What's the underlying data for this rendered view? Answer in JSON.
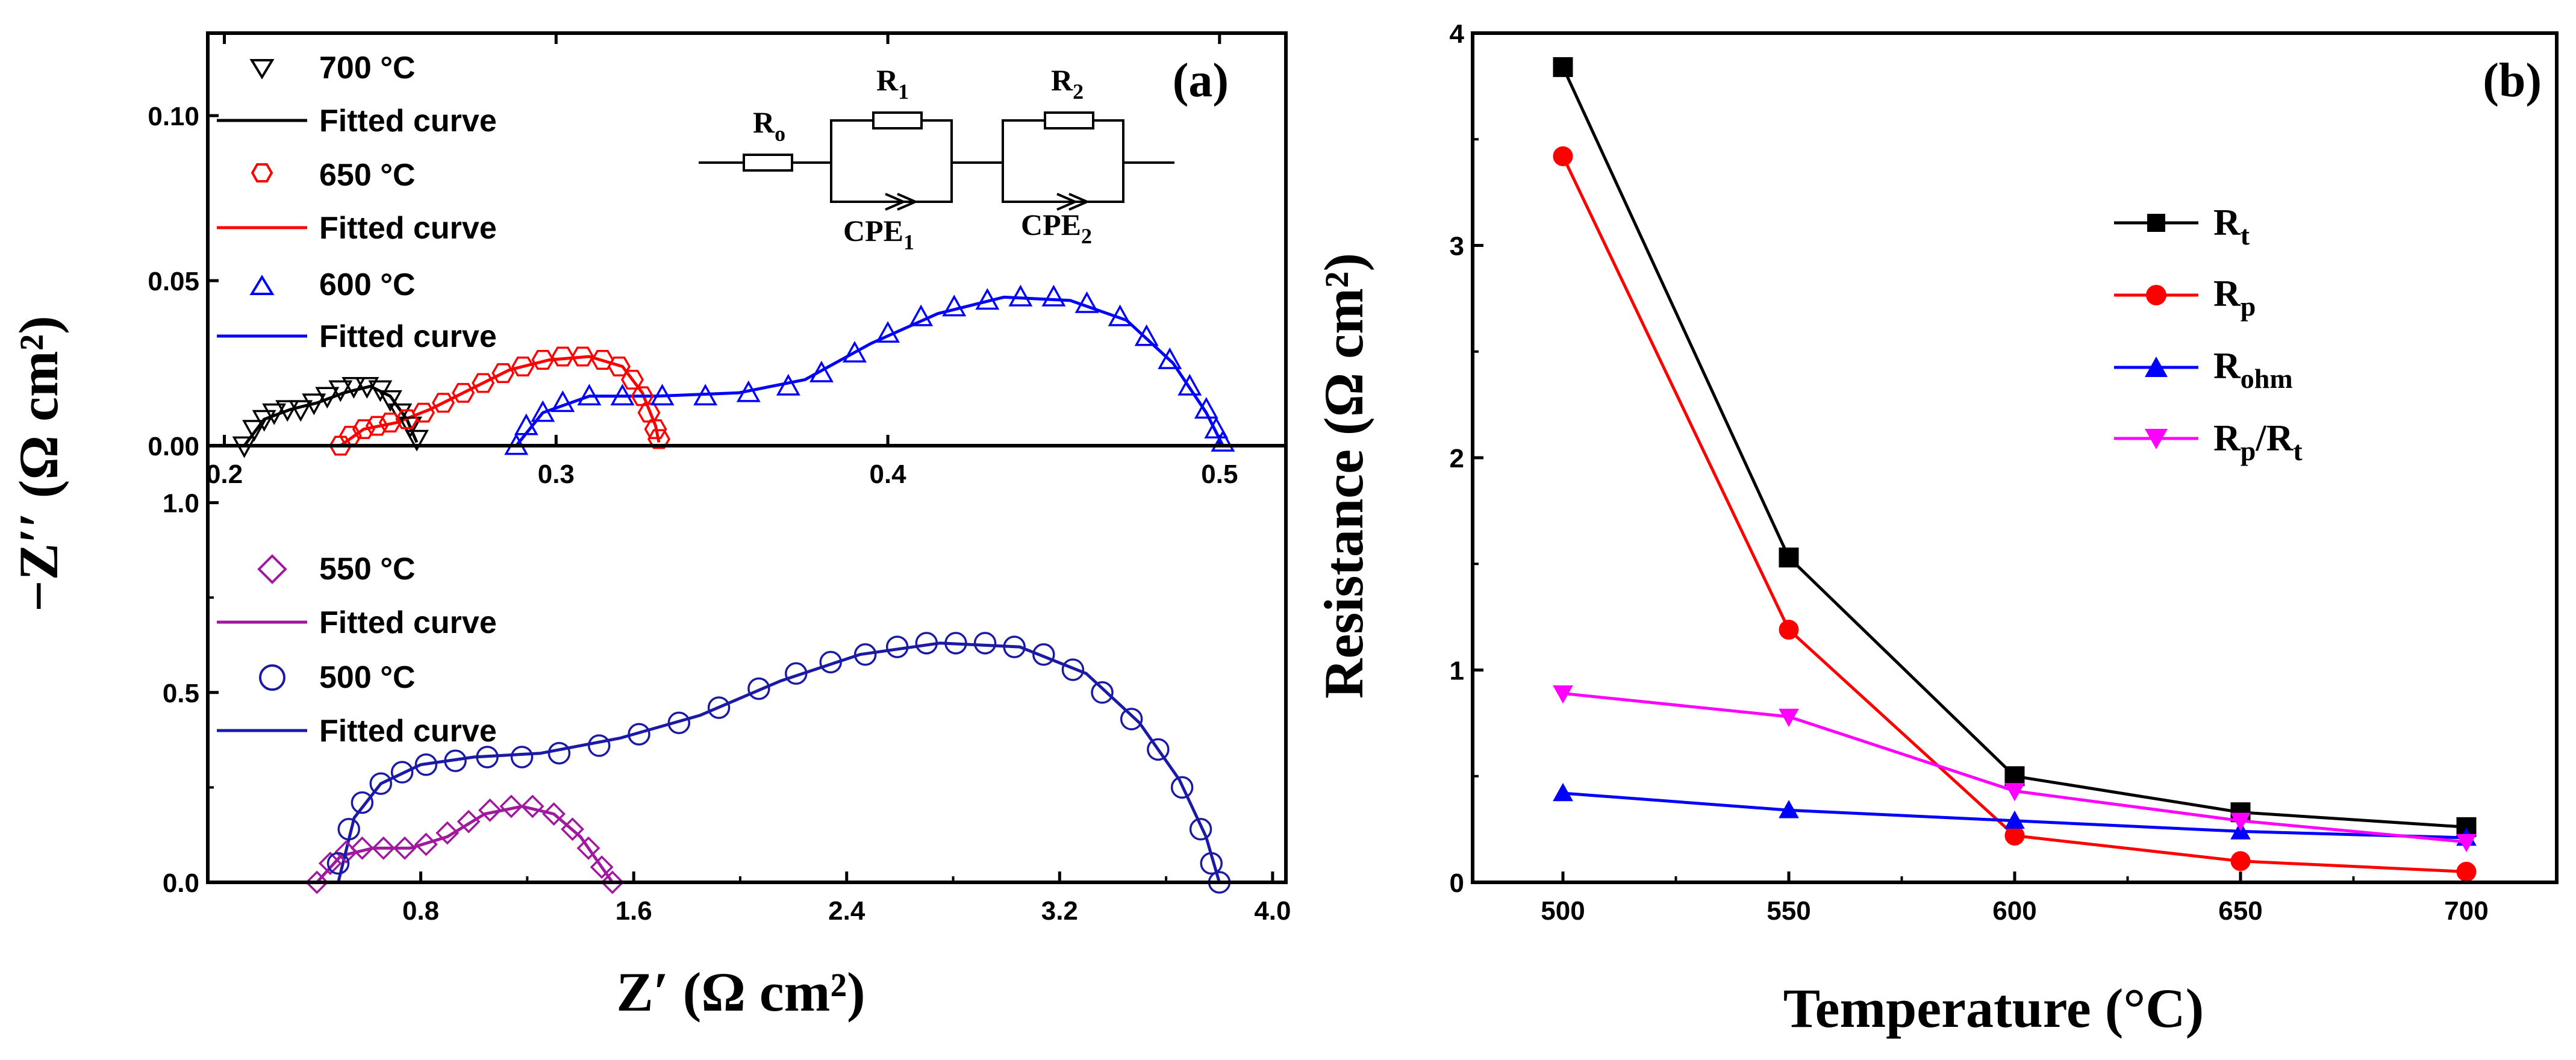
{
  "chart_data": [
    {
      "panel": "(a) top",
      "type": "scatter",
      "panel_label": "(a)",
      "xlim": [
        0.195,
        0.52
      ],
      "ylim": [
        0,
        0.125
      ],
      "xticks": [
        "0.2",
        "0.3",
        "0.4",
        "0.5"
      ],
      "xtick_values": [
        0.2,
        0.3,
        0.4,
        0.5
      ],
      "yticks": [
        "0.00",
        "0.05",
        "0.10"
      ],
      "ytick_values": [
        0,
        0.05,
        0.1
      ],
      "ylabel": "−Z′′ (Ω cm²)",
      "series": [
        {
          "name": "700 °C",
          "marker": "triangle-down",
          "color": "#000000",
          "x": [
            0.206,
            0.209,
            0.212,
            0.215,
            0.219,
            0.223,
            0.227,
            0.231,
            0.235,
            0.239,
            0.243,
            0.247,
            0.25,
            0.253,
            0.256,
            0.258
          ],
          "y": [
            0.0,
            0.005,
            0.008,
            0.01,
            0.011,
            0.011,
            0.013,
            0.015,
            0.017,
            0.018,
            0.018,
            0.017,
            0.014,
            0.01,
            0.006,
            0.002
          ]
        },
        {
          "name": "650 °C",
          "marker": "hexagon",
          "color": "#ff0000",
          "x": [
            0.235,
            0.238,
            0.242,
            0.246,
            0.25,
            0.255,
            0.26,
            0.266,
            0.272,
            0.278,
            0.284,
            0.29,
            0.296,
            0.302,
            0.308,
            0.314,
            0.319,
            0.323,
            0.326,
            0.328,
            0.33,
            0.331
          ],
          "y": [
            0.0,
            0.003,
            0.005,
            0.006,
            0.007,
            0.008,
            0.01,
            0.013,
            0.016,
            0.019,
            0.022,
            0.024,
            0.026,
            0.027,
            0.027,
            0.026,
            0.024,
            0.02,
            0.015,
            0.01,
            0.005,
            0.002
          ]
        },
        {
          "name": "600 °C",
          "marker": "triangle-up",
          "color": "#0000ff",
          "x": [
            0.288,
            0.291,
            0.296,
            0.302,
            0.31,
            0.32,
            0.332,
            0.345,
            0.358,
            0.37,
            0.38,
            0.39,
            0.4,
            0.41,
            0.42,
            0.43,
            0.44,
            0.45,
            0.46,
            0.47,
            0.478,
            0.485,
            0.491,
            0.496,
            0.499,
            0.501
          ],
          "y": [
            0.0,
            0.006,
            0.01,
            0.013,
            0.015,
            0.015,
            0.015,
            0.015,
            0.016,
            0.018,
            0.022,
            0.028,
            0.034,
            0.039,
            0.042,
            0.044,
            0.045,
            0.045,
            0.043,
            0.039,
            0.033,
            0.026,
            0.018,
            0.011,
            0.005,
            0.001
          ]
        }
      ],
      "fits": [
        {
          "name": "Fitted curve",
          "color": "#000000",
          "x": [
            0.206,
            0.212,
            0.22,
            0.228,
            0.236,
            0.244,
            0.25,
            0.255,
            0.258
          ],
          "y": [
            0.0,
            0.008,
            0.011,
            0.013,
            0.016,
            0.018,
            0.015,
            0.008,
            0.001
          ]
        },
        {
          "name": "Fitted curve",
          "color": "#ff0000",
          "x": [
            0.235,
            0.242,
            0.252,
            0.262,
            0.274,
            0.286,
            0.298,
            0.31,
            0.32,
            0.326,
            0.33,
            0.331
          ],
          "y": [
            0.0,
            0.005,
            0.007,
            0.011,
            0.017,
            0.023,
            0.026,
            0.027,
            0.024,
            0.016,
            0.006,
            0.001
          ]
        },
        {
          "name": "Fitted curve",
          "color": "#0000ff",
          "x": [
            0.288,
            0.296,
            0.31,
            0.33,
            0.355,
            0.375,
            0.395,
            0.415,
            0.435,
            0.455,
            0.472,
            0.486,
            0.496,
            0.501
          ],
          "y": [
            0.0,
            0.01,
            0.015,
            0.015,
            0.016,
            0.02,
            0.031,
            0.04,
            0.045,
            0.044,
            0.038,
            0.025,
            0.01,
            0.0
          ]
        }
      ],
      "legend": [
        "700 °C",
        "Fitted curve",
        "650 °C",
        "Fitted curve",
        "600 °C",
        "Fitted curve"
      ],
      "inset_circuit": {
        "labels": [
          "R",
          "o",
          "R",
          "1",
          "R",
          "2",
          "CPE",
          "1",
          "CPE",
          "2"
        ]
      }
    },
    {
      "panel": "(a) bottom",
      "type": "scatter",
      "xlim": [
        0.0,
        4.05
      ],
      "ylim": [
        0,
        1.15
      ],
      "xticks": [
        "0.8",
        "1.6",
        "2.4",
        "3.2",
        "4.0"
      ],
      "xtick_values": [
        0.8,
        1.6,
        2.4,
        3.2,
        4.0
      ],
      "yticks": [
        "0.0",
        "0.5",
        "1.0"
      ],
      "ytick_values": [
        0,
        0.5,
        1.0
      ],
      "xlabel": "Z′ (Ω cm²)",
      "series": [
        {
          "name": "550 °C",
          "marker": "diamond",
          "color": "#a0189e",
          "x": [
            0.41,
            0.46,
            0.52,
            0.58,
            0.66,
            0.74,
            0.82,
            0.9,
            0.98,
            1.06,
            1.14,
            1.22,
            1.3,
            1.37,
            1.43,
            1.48,
            1.52
          ],
          "y": [
            0.0,
            0.05,
            0.08,
            0.09,
            0.09,
            0.09,
            0.1,
            0.13,
            0.16,
            0.19,
            0.2,
            0.2,
            0.18,
            0.14,
            0.09,
            0.04,
            0.0
          ]
        },
        {
          "name": "500 °C",
          "marker": "circle",
          "color": "#1a1aa6",
          "x": [
            0.49,
            0.53,
            0.58,
            0.65,
            0.73,
            0.82,
            0.93,
            1.05,
            1.18,
            1.32,
            1.47,
            1.62,
            1.77,
            1.92,
            2.07,
            2.21,
            2.34,
            2.47,
            2.59,
            2.7,
            2.81,
            2.92,
            3.03,
            3.14,
            3.25,
            3.36,
            3.47,
            3.57,
            3.66,
            3.73,
            3.77,
            3.8
          ],
          "y": [
            0.05,
            0.14,
            0.21,
            0.26,
            0.29,
            0.31,
            0.32,
            0.33,
            0.33,
            0.34,
            0.36,
            0.39,
            0.42,
            0.46,
            0.51,
            0.55,
            0.58,
            0.6,
            0.62,
            0.63,
            0.63,
            0.63,
            0.62,
            0.6,
            0.56,
            0.5,
            0.43,
            0.35,
            0.25,
            0.14,
            0.05,
            0.0
          ]
        }
      ],
      "fits": [
        {
          "name": "Fitted curve",
          "color": "#a0189e",
          "x": [
            0.41,
            0.5,
            0.62,
            0.76,
            0.9,
            1.04,
            1.18,
            1.3,
            1.4,
            1.47,
            1.52
          ],
          "y": [
            0.0,
            0.07,
            0.09,
            0.09,
            0.12,
            0.18,
            0.2,
            0.18,
            0.12,
            0.05,
            0.0
          ]
        },
        {
          "name": "Fitted curve",
          "color": "#1a1aa6",
          "x": [
            0.49,
            0.55,
            0.65,
            0.8,
            1.0,
            1.25,
            1.55,
            1.85,
            2.15,
            2.45,
            2.75,
            3.05,
            3.3,
            3.5,
            3.65,
            3.75,
            3.8
          ],
          "y": [
            0.0,
            0.17,
            0.26,
            0.31,
            0.33,
            0.34,
            0.38,
            0.44,
            0.53,
            0.6,
            0.63,
            0.62,
            0.55,
            0.42,
            0.27,
            0.12,
            0.0
          ]
        }
      ],
      "legend": [
        "550 °C",
        "Fitted curve",
        "500 °C",
        "Fitted curve"
      ]
    },
    {
      "panel": "(b)",
      "type": "line",
      "panel_label": "(b)",
      "x": [
        500,
        550,
        600,
        650,
        700
      ],
      "xlim": [
        480,
        720
      ],
      "ylim": [
        0,
        4
      ],
      "xticks": [
        "500",
        "550",
        "600",
        "650",
        "700"
      ],
      "yticks": [
        "0",
        "1",
        "2",
        "3",
        "4"
      ],
      "xlabel": "Temperature (°C)",
      "ylabel": "Resistance (Ω cm²)",
      "series": [
        {
          "name": "Rt",
          "marker": "square",
          "color": "#000000",
          "values": [
            3.84,
            1.53,
            0.5,
            0.33,
            0.26
          ]
        },
        {
          "name": "Rp",
          "marker": "circle",
          "color": "#ff0000",
          "values": [
            3.42,
            1.19,
            0.22,
            0.1,
            0.05
          ]
        },
        {
          "name": "Rohm",
          "marker": "triangle-up",
          "color": "#0000ff",
          "values": [
            0.42,
            0.34,
            0.29,
            0.24,
            0.21
          ]
        },
        {
          "name": "Rp/Rt",
          "marker": "triangle-down",
          "color": "#ff00ff",
          "values": [
            0.89,
            0.78,
            0.43,
            0.29,
            0.19
          ]
        }
      ],
      "legend": [
        "R",
        "t",
        "R",
        "p",
        "R",
        "ohm",
        "R",
        "p",
        "/R",
        "t"
      ]
    }
  ]
}
